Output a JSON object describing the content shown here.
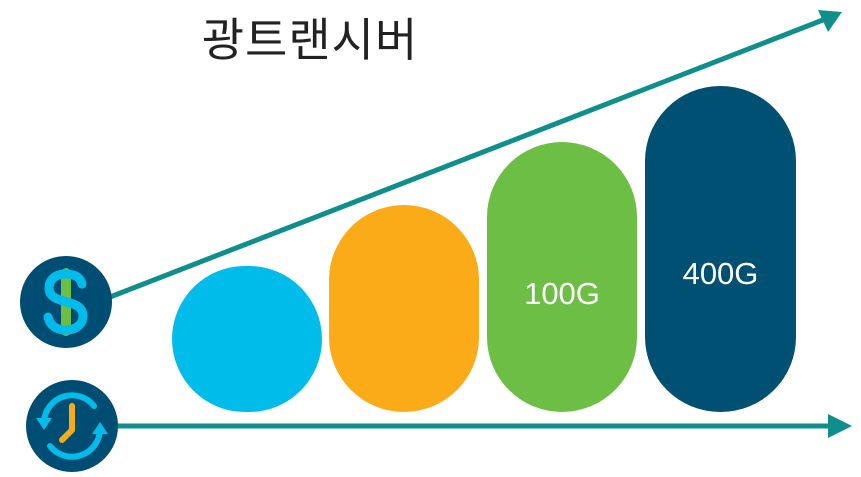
{
  "title": "광트랜시버",
  "colors": {
    "arrow": "#0f8f8c",
    "icon_bg": "#004d73"
  },
  "icons": {
    "cost": "dollar-icon",
    "time": "clock-refresh-icon"
  },
  "stages": [
    {
      "label": "",
      "color": "#00bceb"
    },
    {
      "label": "",
      "color": "#fbab18"
    },
    {
      "label": "100G",
      "color": "#6cbe45"
    },
    {
      "label": "400G",
      "color": "#005073"
    }
  ]
}
